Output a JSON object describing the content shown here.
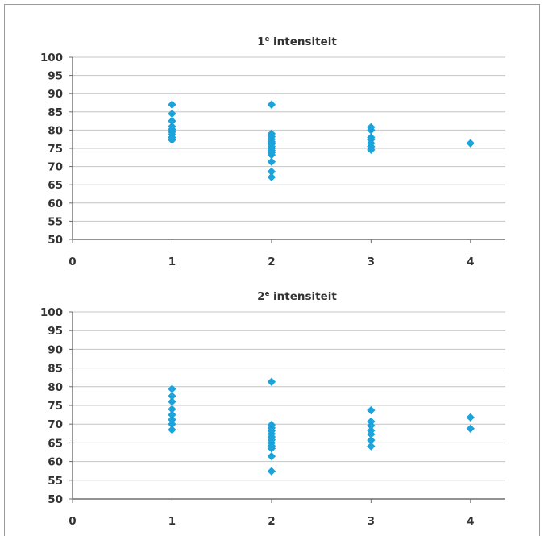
{
  "chart_data": [
    {
      "type": "scatter",
      "title_main": "1",
      "title_sup": "e",
      "title_rest": " intensiteit",
      "xlim": [
        0,
        4.35
      ],
      "ylim": [
        50,
        100
      ],
      "xticks": [
        "0",
        "1",
        "2",
        "3",
        "4"
      ],
      "yticks": [
        "50",
        "55",
        "60",
        "65",
        "70",
        "75",
        "80",
        "85",
        "90",
        "95",
        "100"
      ],
      "marker_color": "#1ba3dc",
      "grid": true,
      "points": [
        {
          "x": 1,
          "y": 87
        },
        {
          "x": 1,
          "y": 84.5
        },
        {
          "x": 1,
          "y": 82.5
        },
        {
          "x": 1,
          "y": 81
        },
        {
          "x": 1,
          "y": 80.2
        },
        {
          "x": 1,
          "y": 79.5
        },
        {
          "x": 1,
          "y": 78.8
        },
        {
          "x": 1,
          "y": 78
        },
        {
          "x": 1,
          "y": 77.3
        },
        {
          "x": 2,
          "y": 87
        },
        {
          "x": 2,
          "y": 79
        },
        {
          "x": 2,
          "y": 78.2
        },
        {
          "x": 2,
          "y": 77.5
        },
        {
          "x": 2,
          "y": 76.8
        },
        {
          "x": 2,
          "y": 76.2
        },
        {
          "x": 2,
          "y": 75.5
        },
        {
          "x": 2,
          "y": 75
        },
        {
          "x": 2,
          "y": 74.4
        },
        {
          "x": 2,
          "y": 73.8
        },
        {
          "x": 2,
          "y": 73.2
        },
        {
          "x": 2,
          "y": 71.3
        },
        {
          "x": 2,
          "y": 68.6
        },
        {
          "x": 2,
          "y": 67.1
        },
        {
          "x": 3,
          "y": 80.8
        },
        {
          "x": 3,
          "y": 80
        },
        {
          "x": 3,
          "y": 78
        },
        {
          "x": 3,
          "y": 77.4
        },
        {
          "x": 3,
          "y": 76.4
        },
        {
          "x": 3,
          "y": 75.5
        },
        {
          "x": 3,
          "y": 74.6
        },
        {
          "x": 4,
          "y": 76.4
        }
      ]
    },
    {
      "type": "scatter",
      "title_main": "2",
      "title_sup": "e",
      "title_rest": " intensiteit",
      "xlim": [
        0,
        4.35
      ],
      "ylim": [
        50,
        100
      ],
      "xticks": [
        "0",
        "1",
        "2",
        "3",
        "4"
      ],
      "yticks": [
        "50",
        "55",
        "60",
        "65",
        "70",
        "75",
        "80",
        "85",
        "90",
        "95",
        "100"
      ],
      "marker_color": "#1ba3dc",
      "grid": true,
      "points": [
        {
          "x": 1,
          "y": 79.4
        },
        {
          "x": 1,
          "y": 77.5
        },
        {
          "x": 1,
          "y": 76
        },
        {
          "x": 1,
          "y": 74
        },
        {
          "x": 1,
          "y": 72.5
        },
        {
          "x": 1,
          "y": 71.2
        },
        {
          "x": 1,
          "y": 70
        },
        {
          "x": 1,
          "y": 68.5
        },
        {
          "x": 2,
          "y": 81.3
        },
        {
          "x": 2,
          "y": 69.8
        },
        {
          "x": 2,
          "y": 69
        },
        {
          "x": 2,
          "y": 68.2
        },
        {
          "x": 2,
          "y": 67.4
        },
        {
          "x": 2,
          "y": 66.6
        },
        {
          "x": 2,
          "y": 65.8
        },
        {
          "x": 2,
          "y": 65
        },
        {
          "x": 2,
          "y": 64.2
        },
        {
          "x": 2,
          "y": 63.5
        },
        {
          "x": 2,
          "y": 61.4
        },
        {
          "x": 2,
          "y": 57.4
        },
        {
          "x": 3,
          "y": 73.7
        },
        {
          "x": 3,
          "y": 70.7
        },
        {
          "x": 3,
          "y": 69.6
        },
        {
          "x": 3,
          "y": 68.3
        },
        {
          "x": 3,
          "y": 67.3
        },
        {
          "x": 3,
          "y": 65.7
        },
        {
          "x": 3,
          "y": 64.1
        },
        {
          "x": 4,
          "y": 71.8
        },
        {
          "x": 4,
          "y": 68.8
        }
      ]
    }
  ]
}
